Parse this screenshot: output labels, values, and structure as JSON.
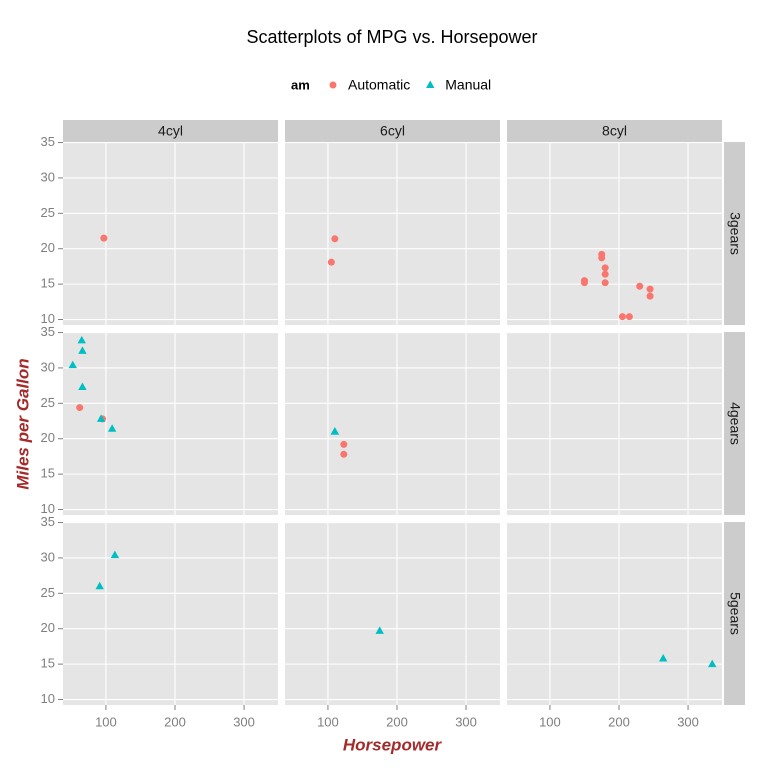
{
  "chart_data": {
    "type": "scatter",
    "title": "Scatterplots of MPG vs. Horsepower",
    "xlabel": "Horsepower",
    "ylabel": "Miles per Gallon",
    "legend_title": "am",
    "columns": [
      "4cyl",
      "6cyl",
      "8cyl"
    ],
    "rows": [
      "3gears",
      "4gears",
      "5gears"
    ],
    "xlim": [
      37.85,
      349.15
    ],
    "ylim": [
      9.225,
      35.075
    ],
    "xticks": [
      100,
      200,
      300
    ],
    "yticks": [
      10,
      15,
      20,
      25,
      30,
      35
    ],
    "grid": true,
    "series": [
      {
        "name": "Automatic",
        "color": "#F8766D",
        "marker": "circle",
        "col": [
          "4cyl",
          "4cyl",
          "4cyl",
          "6cyl",
          "6cyl",
          "6cyl",
          "6cyl",
          "8cyl",
          "8cyl",
          "8cyl",
          "8cyl",
          "8cyl",
          "8cyl",
          "8cyl",
          "8cyl",
          "8cyl",
          "8cyl",
          "8cyl",
          "8cyl"
        ],
        "row": [
          "3gears",
          "4gears",
          "4gears",
          "3gears",
          "3gears",
          "4gears",
          "4gears",
          "3gears",
          "3gears",
          "3gears",
          "3gears",
          "3gears",
          "3gears",
          "3gears",
          "3gears",
          "3gears",
          "3gears",
          "3gears",
          "3gears"
        ],
        "x": [
          97,
          62,
          95,
          110,
          105,
          123,
          123,
          175,
          245,
          180,
          180,
          180,
          205,
          215,
          230,
          150,
          150,
          245,
          175
        ],
        "y": [
          21.5,
          24.4,
          22.8,
          21.4,
          18.1,
          19.2,
          17.8,
          18.7,
          14.3,
          16.4,
          17.3,
          15.2,
          10.4,
          10.4,
          14.7,
          15.5,
          15.2,
          13.3,
          19.2
        ]
      },
      {
        "name": "Manual",
        "color": "#00BFC4",
        "marker": "triangle",
        "col": [
          "4cyl",
          "4cyl",
          "4cyl",
          "4cyl",
          "4cyl",
          "4cyl",
          "4cyl",
          "4cyl",
          "6cyl",
          "6cyl",
          "6cyl",
          "8cyl",
          "8cyl"
        ],
        "row": [
          "4gears",
          "4gears",
          "4gears",
          "4gears",
          "4gears",
          "4gears",
          "5gears",
          "5gears",
          "4gears",
          "4gears",
          "5gears",
          "5gears",
          "5gears"
        ],
        "x": [
          93,
          66,
          52,
          65,
          66,
          109,
          91,
          113,
          110,
          110,
          175,
          264,
          335
        ],
        "y": [
          22.8,
          32.4,
          30.4,
          33.9,
          27.3,
          21.4,
          26.0,
          30.4,
          21.0,
          21.0,
          19.7,
          15.8,
          15.0
        ]
      }
    ]
  }
}
